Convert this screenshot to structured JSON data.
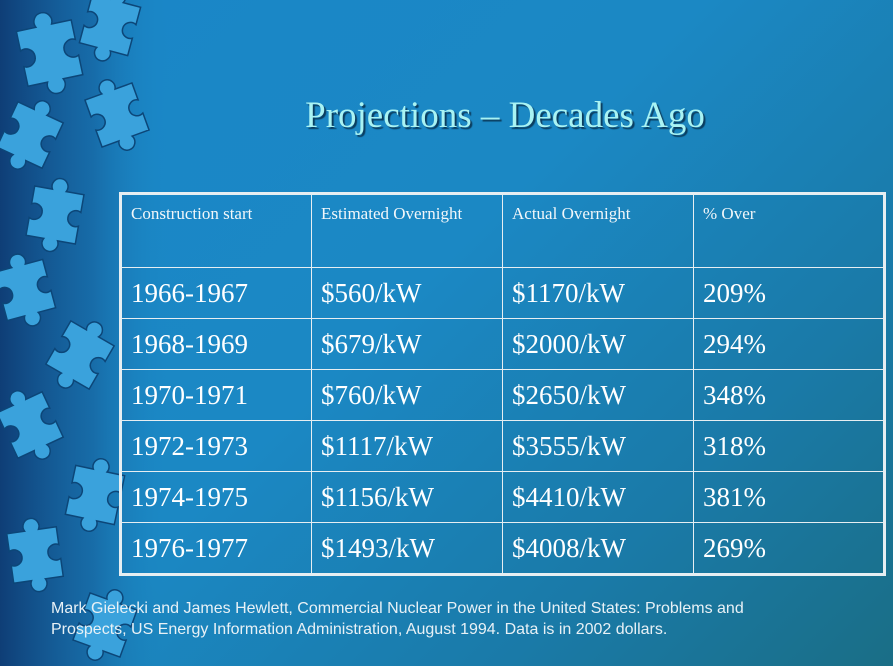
{
  "slide": {
    "title": "Projections – Decades Ago"
  },
  "table": {
    "headers": [
      "Construction start",
      "Estimated Overnight",
      "Actual Overnight",
      "% Over"
    ],
    "rows": [
      [
        "1966-1967",
        "$560/kW",
        "$1170/kW",
        "209%"
      ],
      [
        "1968-1969",
        "$679/kW",
        "$2000/kW",
        "294%"
      ],
      [
        "1970-1971",
        "$760/kW",
        "$2650/kW",
        "348%"
      ],
      [
        "1972-1973",
        "$1117/kW",
        "$3555/kW",
        "318%"
      ],
      [
        "1974-1975",
        "$1156/kW",
        "$4410/kW",
        "381%"
      ],
      [
        "1976-1977",
        "$1493/kW",
        "$4008/kW",
        "269%"
      ]
    ]
  },
  "citation": {
    "line1": "Mark Gielecki and James Hewlett, Commercial Nuclear Power in the United States:  Problems and",
    "line2": "Prospects, US Energy Information Administration, August 1994.  Data is in 2002 dollars."
  },
  "colors": {
    "background": "#1b88c4",
    "title": "#a9f3f3",
    "table_border": "#e6eef2",
    "text": "#ffffff"
  }
}
